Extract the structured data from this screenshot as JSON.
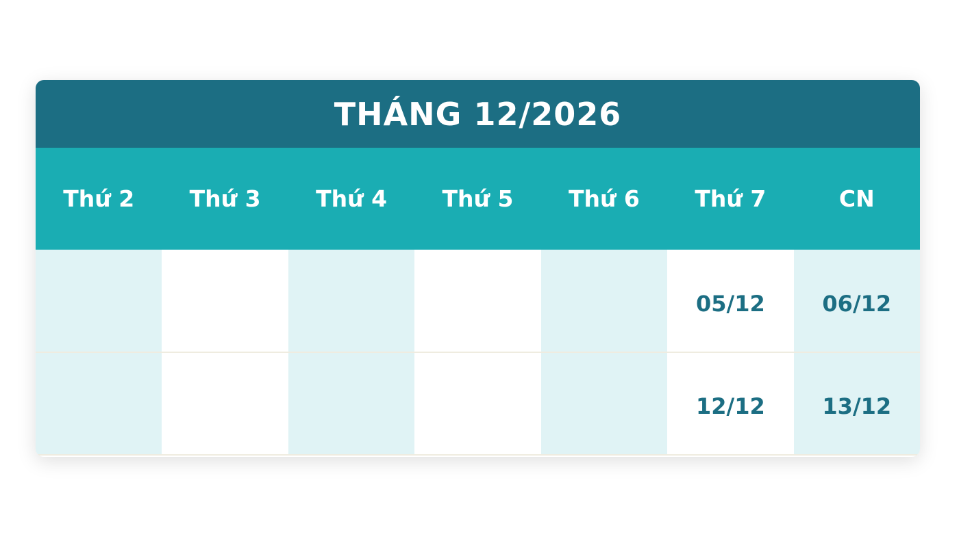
{
  "calendar": {
    "title": "THÁNG 12/2026",
    "weekdays": [
      "Thứ 2",
      "Thứ 3",
      "Thứ 4",
      "Thứ 5",
      "Thứ 6",
      "Thứ 7",
      "CN"
    ],
    "weeks": [
      [
        "",
        "",
        "",
        "",
        "",
        "05/12",
        "06/12"
      ],
      [
        "",
        "",
        "",
        "",
        "",
        "12/12",
        "13/12"
      ]
    ]
  },
  "colors": {
    "title_bg": "#1c6e83",
    "header_bg": "#1aadb3",
    "cell_tint": "#e0f3f5",
    "date_text": "#1c6e83"
  }
}
